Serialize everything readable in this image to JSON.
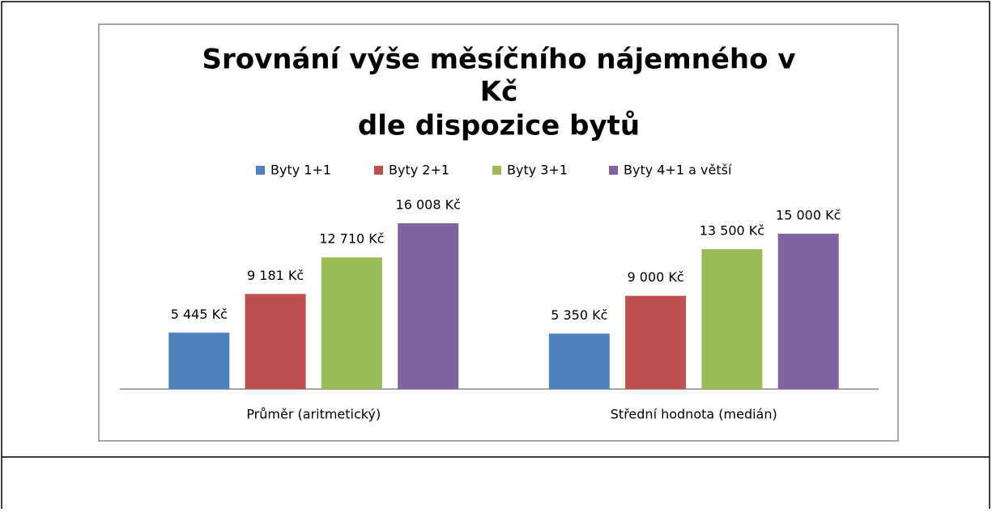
{
  "chart_data": {
    "type": "bar",
    "title": [
      "Srovnání výše měsíčního nájemného v",
      "Kč",
      "dle dispozice bytů"
    ],
    "categories": [
      "Průměr (aritmetický)",
      "Střední hodnota (medián)"
    ],
    "series": [
      {
        "name": "Byty 1+1",
        "color": "#4f81bd",
        "values": [
          5445,
          5350
        ],
        "value_labels": [
          "5 445 Kč",
          "5 350 Kč"
        ]
      },
      {
        "name": "Byty 2+1",
        "color": "#c0504d",
        "values": [
          9181,
          9000
        ],
        "value_labels": [
          "9 181 Kč",
          "9 000 Kč"
        ]
      },
      {
        "name": "Byty 3+1",
        "color": "#9bbb59",
        "values": [
          12710,
          13500
        ],
        "value_labels": [
          "12 710 Kč",
          "13 500 Kč"
        ]
      },
      {
        "name": "Byty 4+1 a větší",
        "color": "#8064a2",
        "values": [
          16008,
          15000
        ],
        "value_labels": [
          "16 008 Kč",
          "15 000 Kč"
        ]
      }
    ],
    "legend": "top"
  }
}
